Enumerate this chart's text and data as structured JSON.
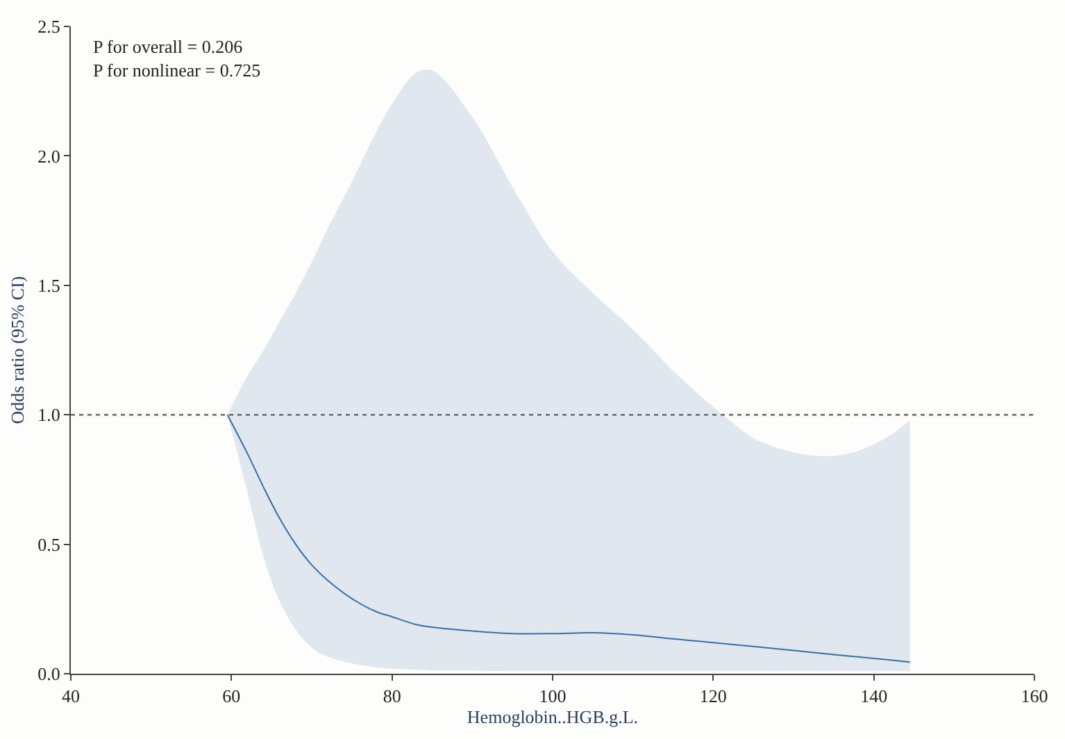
{
  "chart_data": {
    "type": "line",
    "xlabel": "Hemoglobin..HGB.g.L.",
    "ylabel": "Odds ratio (95% CI)",
    "annotations": [
      "P for overall = 0.206\nP for nonlinear = 0.725"
    ],
    "x": [
      59.5,
      62,
      64,
      66,
      68,
      70,
      72,
      75,
      78,
      80,
      83,
      85,
      90,
      95,
      100,
      105,
      110,
      115,
      120,
      122,
      125,
      130,
      134,
      138,
      142,
      144.5
    ],
    "series": [
      {
        "color": "#3a6ea5",
        "values": [
          1.0,
          0.85,
          0.72,
          0.6,
          0.5,
          0.42,
          0.36,
          0.29,
          0.24,
          0.22,
          0.19,
          0.18,
          0.165,
          0.155,
          0.155,
          0.158,
          0.15,
          0.135,
          0.12,
          0.114,
          0.105,
          0.09,
          0.077,
          0.065,
          0.053,
          0.045
        ],
        "upper": [
          1.0,
          1.15,
          1.25,
          1.36,
          1.47,
          1.59,
          1.72,
          1.9,
          2.09,
          2.2,
          2.32,
          2.33,
          2.15,
          1.88,
          1.63,
          1.47,
          1.33,
          1.17,
          1.03,
          0.98,
          0.91,
          0.855,
          0.84,
          0.86,
          0.92,
          0.98
        ],
        "lower": [
          1.0,
          0.7,
          0.45,
          0.28,
          0.17,
          0.1,
          0.065,
          0.04,
          0.025,
          0.02,
          0.015,
          0.013,
          0.012,
          0.01,
          0.01,
          0.01,
          0.01,
          0.01,
          0.01,
          0.01,
          0.01,
          0.01,
          0.01,
          0.01,
          0.01,
          0.01
        ]
      }
    ],
    "xlim": [
      40,
      160
    ],
    "xticks": [
      40,
      60,
      80,
      100,
      120,
      140,
      160
    ],
    "ylim": [
      0,
      2.5
    ],
    "yticks": [
      {
        "value": 0,
        "label": "0.0"
      },
      0.5,
      {
        "value": 1,
        "label": "1.0"
      },
      1.5,
      {
        "value": 2,
        "label": "2.0"
      },
      2.5
    ],
    "ref_lines": [
      {
        "axis": "y",
        "value": 1.0,
        "color": "#666666",
        "line_style": "dotted"
      }
    ],
    "marker": "none",
    "line_style": "solid"
  }
}
